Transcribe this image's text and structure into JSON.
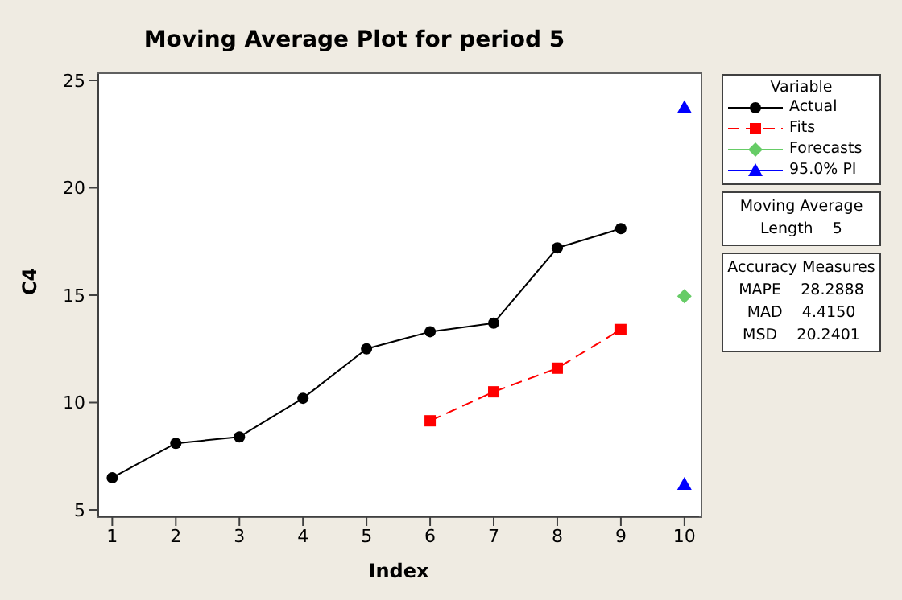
{
  "chart_data": {
    "type": "line",
    "title": "Moving Average Plot for period 5",
    "xlabel": "Index",
    "ylabel": "C4",
    "legend_title": "Variable",
    "legend": "right",
    "grid": false,
    "xlim": [
      0.78,
      10.23
    ],
    "xticks": [
      1,
      2,
      3,
      4,
      5,
      6,
      7,
      8,
      9,
      10
    ],
    "ylim": [
      4.7,
      25.3
    ],
    "yticks": [
      5,
      10,
      15,
      20,
      25
    ],
    "series": [
      {
        "name": "Actual",
        "color": "#000000",
        "marker": "circle",
        "line_style": "solid",
        "x": [
          1,
          2,
          3,
          4,
          5,
          6,
          7,
          8,
          9
        ],
        "values": [
          6.5,
          8.1,
          8.4,
          10.2,
          12.5,
          13.3,
          13.7,
          17.2,
          18.1
        ]
      },
      {
        "name": "Fits",
        "color": "#ff0000",
        "marker": "square",
        "line_style": "dashed",
        "x": [
          6,
          7,
          8,
          9
        ],
        "values": [
          9.15,
          10.5,
          11.6,
          13.4
        ]
      },
      {
        "name": "Forecasts",
        "type": "scatter",
        "color": "#66cc66",
        "marker": "diamond",
        "x": [
          10
        ],
        "values": [
          14.95
        ]
      },
      {
        "name": "95.0% PI",
        "type": "scatter",
        "color": "#0000ff",
        "marker": "triangle",
        "x": [
          10,
          10
        ],
        "values": [
          23.75,
          6.2
        ]
      }
    ],
    "annotations": [
      "Moving Average",
      "Length    5",
      "Accuracy Measures",
      "MAPE    28.2888",
      "MAD    4.4150",
      "MSD    20.2401"
    ]
  }
}
